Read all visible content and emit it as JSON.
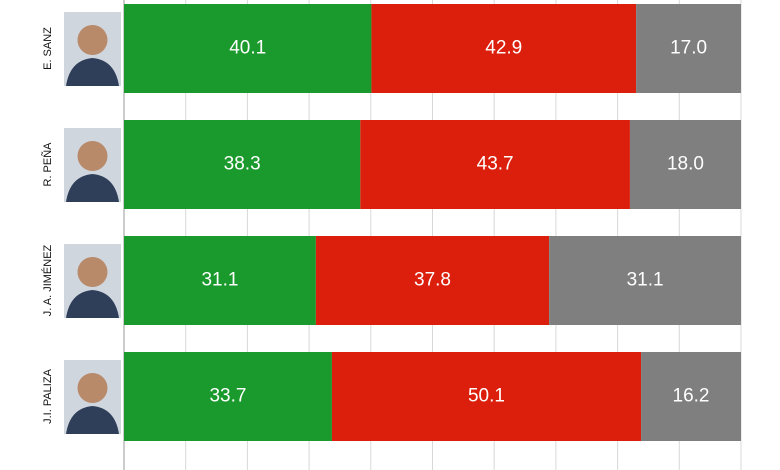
{
  "chart_data": {
    "type": "stacked-bar-horizontal",
    "categories": [
      "E. SANZ",
      "R. PEÑA",
      "J. A. JIMÉNEZ",
      "J.I. PALIZA"
    ],
    "series": [
      {
        "color": "#1a9a2c",
        "values": [
          40.1,
          38.3,
          31.1,
          33.7
        ]
      },
      {
        "color": "#dc1f0c",
        "values": [
          42.9,
          43.7,
          37.8,
          50.1
        ]
      },
      {
        "color": "#7f7f7f",
        "values": [
          17.0,
          18.0,
          31.1,
          16.2
        ],
        "value_labels": [
          "17.0",
          "18.0",
          "31.1",
          "16.2"
        ]
      }
    ],
    "xlim": [
      0,
      100
    ],
    "xticks": [
      0,
      10,
      20,
      30,
      40,
      50,
      60,
      70,
      80,
      90,
      100
    ],
    "grid": true
  }
}
